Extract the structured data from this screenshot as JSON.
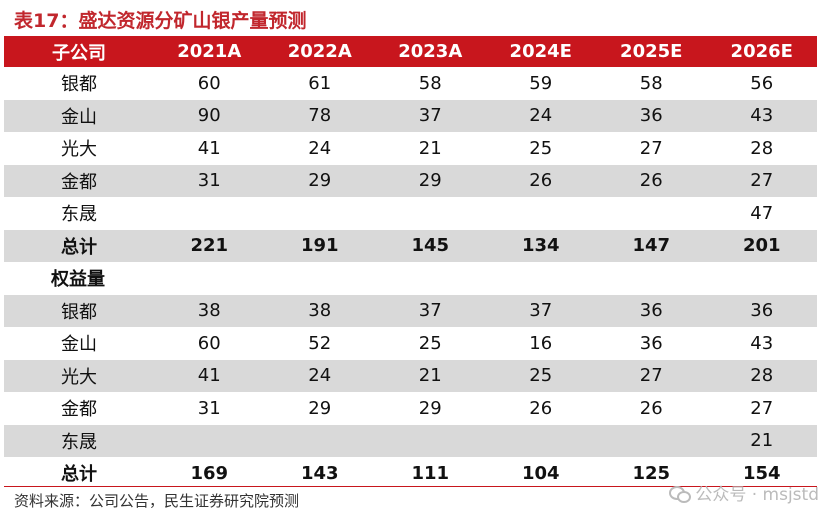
{
  "title": "表17：盛达资源分矿山银产量预测",
  "header": [
    "子公司",
    "2021A",
    "2022A",
    "2023A",
    "2024E",
    "2025E",
    "2026E"
  ],
  "rows": [
    {
      "label": "银都",
      "values": [
        "60",
        "61",
        "58",
        "59",
        "58",
        "56"
      ],
      "shade": false
    },
    {
      "label": "金山",
      "values": [
        "90",
        "78",
        "37",
        "24",
        "36",
        "43"
      ],
      "shade": true
    },
    {
      "label": "光大",
      "values": [
        "41",
        "24",
        "21",
        "25",
        "27",
        "28"
      ],
      "shade": false
    },
    {
      "label": "金都",
      "values": [
        "31",
        "29",
        "29",
        "26",
        "26",
        "27"
      ],
      "shade": true
    },
    {
      "label": "东晟",
      "values": [
        "",
        "",
        "",
        "",
        "",
        "47"
      ],
      "shade": false
    },
    {
      "label": "总计",
      "values": [
        "221",
        "191",
        "145",
        "134",
        "147",
        "201"
      ],
      "shade": true,
      "total": true
    },
    {
      "label": "权益量",
      "values": [
        "",
        "",
        "",
        "",
        "",
        ""
      ],
      "shade": false,
      "section": true
    },
    {
      "label": "银都",
      "values": [
        "38",
        "38",
        "37",
        "37",
        "36",
        "36"
      ],
      "shade": true
    },
    {
      "label": "金山",
      "values": [
        "60",
        "52",
        "25",
        "16",
        "36",
        "43"
      ],
      "shade": false
    },
    {
      "label": "光大",
      "values": [
        "41",
        "24",
        "21",
        "25",
        "27",
        "28"
      ],
      "shade": true
    },
    {
      "label": "金都",
      "values": [
        "31",
        "29",
        "29",
        "26",
        "26",
        "27"
      ],
      "shade": false
    },
    {
      "label": "东晟",
      "values": [
        "",
        "",
        "",
        "",
        "",
        "21"
      ],
      "shade": true
    },
    {
      "label": "总计",
      "values": [
        "169",
        "143",
        "111",
        "104",
        "125",
        "154"
      ],
      "shade": false,
      "total": true
    }
  ],
  "source": "资料来源：公司公告，民生证券研究院预测",
  "watermark": "公众号 · msjstd",
  "colors": {
    "accent": "#c8161d",
    "shade": "#d9d9d9"
  }
}
